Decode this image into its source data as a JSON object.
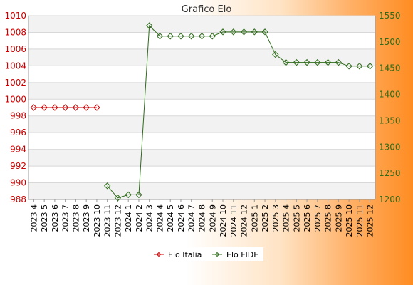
{
  "chart_data": {
    "type": "line",
    "title": "Grafico Elo",
    "categories": [
      "2023 4",
      "2023 5",
      "2023 6",
      "2023 7",
      "2023 8",
      "2023 9",
      "2023 10",
      "2023 11",
      "2023 12",
      "2024 1",
      "2024 2",
      "2024 3",
      "2024 4",
      "2024 5",
      "2024 6",
      "2024 7",
      "2024 8",
      "2024 9",
      "2024 10",
      "2024 11",
      "2024 12",
      "2025 1",
      "2025 2",
      "2025 3",
      "2025 4",
      "2025 5",
      "2025 6",
      "2025 7",
      "2025 8",
      "2025 9",
      "2025 10",
      "2025 11",
      "2025 12"
    ],
    "y_left": {
      "min": 988,
      "max": 1010,
      "ticks": [
        988,
        990,
        992,
        994,
        996,
        998,
        1000,
        1002,
        1004,
        1006,
        1008,
        1010
      ],
      "color": "#cc0000"
    },
    "y_right": {
      "min": 1200,
      "max": 1550,
      "ticks": [
        1200,
        1250,
        1300,
        1350,
        1400,
        1450,
        1500,
        1550
      ],
      "color": "#2e6b1a"
    },
    "grid": true,
    "legend_position": "bottom",
    "series": [
      {
        "name": "Elo Italia",
        "axis": "left",
        "color": "#cc0000",
        "values": [
          999,
          999,
          999,
          999,
          999,
          999,
          999,
          null,
          null,
          null,
          null,
          null,
          null,
          null,
          null,
          null,
          null,
          null,
          null,
          null,
          null,
          null,
          null,
          null,
          null,
          null,
          null,
          null,
          null,
          null,
          null,
          null,
          null
        ]
      },
      {
        "name": "Elo FIDE",
        "axis": "right",
        "color": "#2e6b1a",
        "values": [
          null,
          null,
          null,
          null,
          null,
          null,
          null,
          1226,
          1203,
          1209,
          1209,
          1531,
          1511,
          1511,
          1511,
          1511,
          1511,
          1511,
          1519,
          1519,
          1519,
          1519,
          1519,
          1476,
          1461,
          1461,
          1461,
          1461,
          1461,
          1461,
          1454,
          1454,
          1454
        ]
      }
    ]
  }
}
